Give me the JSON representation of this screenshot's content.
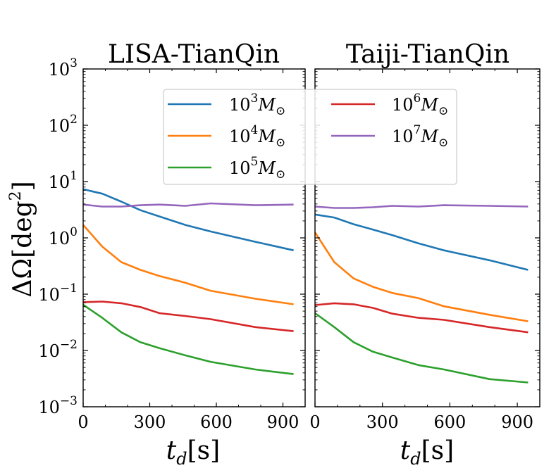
{
  "chart_data": [
    {
      "type": "line",
      "title": "LISA-TianQin",
      "xlabel": "t_d[s]",
      "ylabel": "ΔΩ[deg²]",
      "xlim": [
        0,
        1000
      ],
      "ylim": [
        0.001,
        1000
      ],
      "yscale": "log",
      "xticks": [
        0,
        300,
        600,
        900
      ],
      "yticks": [
        "10^-3",
        "10^-2",
        "10^-1",
        "10^0",
        "10^1",
        "10^2",
        "10^3"
      ],
      "x": [
        0,
        86,
        172,
        258,
        344,
        460,
        574,
        776,
        948
      ],
      "series": [
        {
          "name": "10^3 M_⊙",
          "color": "#1f77b4",
          "values": [
            7.3,
            6.1,
            4.4,
            3.1,
            2.4,
            1.7,
            1.3,
            0.85,
            0.6
          ]
        },
        {
          "name": "10^4 M_⊙",
          "color": "#ff7f0e",
          "values": [
            1.7,
            0.7,
            0.37,
            0.27,
            0.21,
            0.16,
            0.115,
            0.083,
            0.066
          ]
        },
        {
          "name": "10^5 M_⊙",
          "color": "#2ca02c",
          "values": [
            0.065,
            0.038,
            0.021,
            0.014,
            0.011,
            0.0082,
            0.0063,
            0.0046,
            0.0038
          ]
        },
        {
          "name": "10^6 M_⊙",
          "color": "#d62728",
          "values": [
            0.072,
            0.074,
            0.069,
            0.059,
            0.046,
            0.041,
            0.036,
            0.026,
            0.022
          ]
        },
        {
          "name": "10^7 M_⊙",
          "color": "#9467bd",
          "values": [
            3.9,
            3.6,
            3.6,
            3.8,
            3.9,
            3.7,
            4.1,
            3.8,
            3.9
          ]
        }
      ]
    },
    {
      "type": "line",
      "title": "Taiji-TianQin",
      "xlabel": "t_d[s]",
      "xlim": [
        0,
        1000
      ],
      "ylim": [
        0.001,
        1000
      ],
      "yscale": "log",
      "xticks": [
        0,
        300,
        600,
        900
      ],
      "x": [
        0,
        86,
        172,
        258,
        344,
        460,
        574,
        776,
        948
      ],
      "series": [
        {
          "name": "10^3 M_⊙",
          "color": "#1f77b4",
          "values": [
            2.6,
            2.3,
            1.75,
            1.4,
            1.12,
            0.8,
            0.6,
            0.4,
            0.27
          ]
        },
        {
          "name": "10^4 M_⊙",
          "color": "#ff7f0e",
          "values": [
            1.25,
            0.37,
            0.19,
            0.135,
            0.105,
            0.085,
            0.061,
            0.043,
            0.033
          ]
        },
        {
          "name": "10^5 M_⊙",
          "color": "#2ca02c",
          "values": [
            0.046,
            0.026,
            0.014,
            0.0095,
            0.0075,
            0.0055,
            0.0046,
            0.0031,
            0.0027
          ]
        },
        {
          "name": "10^6 M_⊙",
          "color": "#d62728",
          "values": [
            0.064,
            0.069,
            0.066,
            0.057,
            0.045,
            0.038,
            0.035,
            0.026,
            0.021
          ]
        },
        {
          "name": "10^7 M_⊙",
          "color": "#9467bd",
          "values": [
            3.6,
            3.4,
            3.4,
            3.5,
            3.7,
            3.6,
            3.8,
            3.7,
            3.6
          ]
        }
      ]
    }
  ],
  "legend": {
    "placement": "upper-center",
    "entries": [
      {
        "base": "10",
        "exp": "3",
        "unit": "M",
        "sub": "⊙",
        "color": "#1f77b4"
      },
      {
        "base": "10",
        "exp": "4",
        "unit": "M",
        "sub": "⊙",
        "color": "#ff7f0e"
      },
      {
        "base": "10",
        "exp": "5",
        "unit": "M",
        "sub": "⊙",
        "color": "#2ca02c"
      },
      {
        "base": "10",
        "exp": "6",
        "unit": "M",
        "sub": "⊙",
        "color": "#d62728"
      },
      {
        "base": "10",
        "exp": "7",
        "unit": "M",
        "sub": "⊙",
        "color": "#9467bd"
      }
    ]
  },
  "labels": {
    "title_left": "LISA-TianQin",
    "title_right": "Taiji-TianQin",
    "ylabel_main": "ΔΩ[deg",
    "ylabel_exp": "2",
    "ylabel_close": "]",
    "xlabel_var": "t",
    "xlabel_sub": "d",
    "xlabel_unit": "[s]",
    "ytick_base": "10",
    "ytick_exps": [
      "−3",
      "−2",
      "−1",
      "0",
      "1",
      "2",
      "3"
    ],
    "xtick_labels": [
      "0",
      "300",
      "600",
      "900"
    ]
  }
}
